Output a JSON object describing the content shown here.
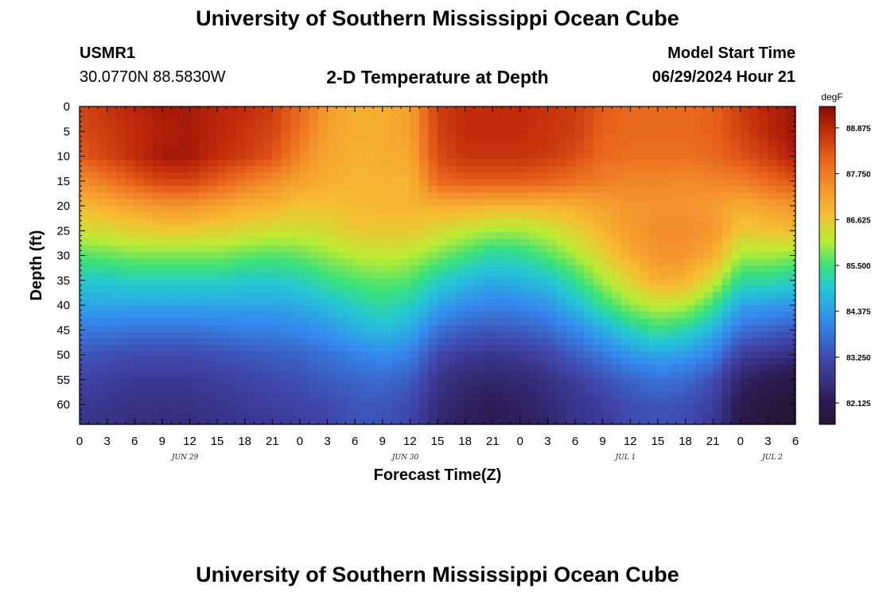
{
  "header": {
    "title": "University of Southern Mississippi Ocean Cube",
    "station_id": "USMR1",
    "coordinates": "30.0770N  88.5830W",
    "product": "2-D Temperature at Depth",
    "model_start_label": "Model Start Time",
    "model_start_value": "06/29/2024 Hour 21"
  },
  "footer": {
    "title": "University of Southern Mississippi Ocean Cube"
  },
  "chart_data": {
    "type": "heatmap",
    "title": "2-D Temperature at Depth",
    "xlabel": "Forecast Time(Z)",
    "ylabel": "Depth (ft)",
    "x_range_hours": [
      0,
      78
    ],
    "y_range_ft": [
      0,
      64
    ],
    "x_tick_labels": [
      "0",
      "3",
      "6",
      "9",
      "12",
      "15",
      "18",
      "21",
      "0",
      "3",
      "6",
      "9",
      "12",
      "15",
      "18",
      "21",
      "0",
      "3",
      "6",
      "9",
      "12",
      "15",
      "18",
      "21",
      "0",
      "3",
      "6"
    ],
    "y_tick_labels": [
      "0",
      "5",
      "10",
      "15",
      "20",
      "25",
      "30",
      "35",
      "40",
      "45",
      "50",
      "55",
      "60"
    ],
    "date_labels": [
      {
        "text": "JUN 29",
        "hour": 11.5
      },
      {
        "text": "JUN 30",
        "hour": 35.5
      },
      {
        "text": "JUL 1",
        "hour": 59.5
      },
      {
        "text": "JUL 2",
        "hour": 75.5
      }
    ],
    "colorbar": {
      "unit": "degF",
      "min": 81.6,
      "max": 89.4,
      "tick_labels": [
        "88.875",
        "87.750",
        "86.625",
        "85.500",
        "84.375",
        "83.250",
        "82.125"
      ],
      "tick_values": [
        88.875,
        87.75,
        86.625,
        85.5,
        84.375,
        83.25,
        82.125
      ]
    },
    "depth_levels_ft": [
      0,
      5,
      10,
      15,
      20,
      25,
      30,
      35,
      40,
      45,
      50,
      55,
      60,
      64
    ],
    "time_hours": [
      0,
      3,
      6,
      9,
      12,
      15,
      18,
      21,
      24,
      27,
      30,
      33,
      36,
      39,
      42,
      45,
      48,
      51,
      54,
      57,
      60,
      63,
      66,
      69,
      72,
      75,
      78
    ],
    "temperature_degF_by_depth": [
      [
        88.5,
        88.7,
        88.9,
        89.1,
        89.1,
        88.9,
        88.8,
        88.6,
        88.0,
        87.3,
        87.0,
        87.0,
        87.2,
        88.6,
        88.8,
        88.8,
        88.8,
        88.7,
        88.6,
        88.2,
        88.0,
        88.0,
        88.0,
        88.1,
        88.6,
        88.9,
        89.2
      ],
      [
        88.4,
        88.6,
        88.8,
        89.0,
        89.1,
        88.9,
        88.7,
        88.5,
        87.9,
        87.2,
        87.0,
        87.0,
        87.2,
        88.5,
        88.8,
        88.8,
        88.8,
        88.7,
        88.6,
        88.1,
        88.0,
        88.0,
        88.0,
        88.1,
        88.5,
        88.9,
        89.2
      ],
      [
        88.2,
        88.5,
        88.8,
        89.1,
        89.1,
        88.8,
        88.6,
        88.3,
        87.6,
        87.1,
        86.9,
        87.0,
        87.1,
        88.4,
        88.7,
        88.7,
        88.7,
        88.6,
        88.4,
        88.0,
        87.9,
        87.9,
        87.9,
        88.0,
        88.3,
        88.6,
        89.0
      ],
      [
        87.5,
        87.8,
        88.2,
        88.5,
        88.5,
        88.2,
        87.8,
        87.5,
        87.2,
        87.0,
        86.9,
        86.9,
        86.9,
        88.0,
        88.2,
        88.2,
        88.2,
        88.1,
        87.9,
        87.7,
        87.6,
        87.6,
        87.5,
        87.6,
        87.7,
        88.0,
        88.3
      ],
      [
        86.8,
        87.0,
        87.2,
        87.4,
        87.4,
        87.2,
        87.0,
        86.9,
        86.7,
        86.7,
        86.8,
        86.9,
        86.9,
        87.0,
        87.0,
        86.9,
        86.9,
        86.9,
        87.0,
        87.2,
        87.4,
        87.4,
        87.4,
        87.3,
        87.0,
        87.2,
        87.4
      ],
      [
        86.3,
        86.4,
        86.5,
        86.6,
        86.6,
        86.5,
        86.4,
        86.3,
        86.3,
        86.4,
        86.6,
        86.6,
        86.6,
        86.4,
        86.2,
        86.0,
        86.0,
        86.2,
        86.5,
        86.9,
        87.3,
        87.5,
        87.5,
        87.4,
        86.6,
        86.7,
        86.8
      ],
      [
        85.6,
        85.7,
        85.8,
        85.8,
        85.8,
        85.8,
        85.7,
        85.6,
        85.7,
        85.9,
        86.1,
        86.2,
        86.1,
        85.8,
        85.5,
        85.2,
        85.3,
        85.6,
        86.0,
        86.5,
        87.0,
        87.4,
        87.4,
        87.0,
        86.0,
        86.0,
        85.9
      ],
      [
        85.0,
        85.0,
        85.1,
        85.1,
        85.1,
        85.1,
        85.0,
        85.0,
        85.1,
        85.4,
        85.6,
        85.7,
        85.6,
        85.1,
        84.8,
        84.6,
        84.7,
        84.9,
        85.4,
        86.0,
        86.5,
        87.0,
        86.9,
        86.3,
        85.3,
        85.3,
        85.1
      ],
      [
        84.5,
        84.5,
        84.5,
        84.5,
        84.5,
        84.5,
        84.5,
        84.5,
        84.6,
        84.8,
        85.1,
        85.3,
        85.1,
        84.5,
        84.2,
        84.0,
        84.1,
        84.3,
        84.8,
        85.4,
        85.9,
        86.2,
        86.1,
        85.5,
        84.5,
        84.4,
        84.3
      ],
      [
        83.9,
        83.9,
        83.8,
        83.8,
        83.8,
        83.9,
        84.0,
        84.0,
        84.1,
        84.3,
        84.6,
        84.8,
        84.6,
        83.8,
        83.5,
        83.4,
        83.5,
        83.7,
        84.1,
        84.6,
        85.1,
        85.4,
        85.2,
        84.7,
        83.8,
        83.6,
        83.4
      ],
      [
        83.4,
        83.3,
        83.2,
        83.2,
        83.2,
        83.3,
        83.4,
        83.5,
        83.6,
        83.8,
        84.0,
        84.2,
        84.0,
        83.2,
        82.9,
        82.8,
        82.9,
        83.1,
        83.5,
        83.9,
        84.3,
        84.5,
        84.4,
        84.0,
        83.0,
        82.8,
        82.6
      ],
      [
        83.1,
        83.0,
        82.9,
        82.9,
        82.9,
        83.0,
        83.1,
        83.2,
        83.3,
        83.5,
        83.6,
        83.7,
        83.5,
        82.8,
        82.5,
        82.4,
        82.5,
        82.7,
        83.0,
        83.3,
        83.6,
        83.8,
        83.7,
        83.3,
        82.4,
        82.1,
        81.9
      ],
      [
        82.9,
        82.8,
        82.7,
        82.7,
        82.7,
        82.8,
        82.9,
        83.0,
        83.1,
        83.2,
        83.4,
        83.4,
        83.2,
        82.6,
        82.3,
        82.2,
        82.3,
        82.5,
        82.8,
        83.0,
        83.3,
        83.4,
        83.3,
        83.0,
        82.1,
        81.8,
        81.7
      ],
      [
        82.8,
        82.7,
        82.6,
        82.6,
        82.6,
        82.7,
        82.8,
        82.9,
        83.0,
        83.1,
        83.3,
        83.3,
        83.1,
        82.5,
        82.2,
        82.1,
        82.2,
        82.4,
        82.7,
        82.9,
        83.2,
        83.3,
        83.2,
        82.9,
        82.0,
        81.7,
        81.6
      ]
    ]
  }
}
